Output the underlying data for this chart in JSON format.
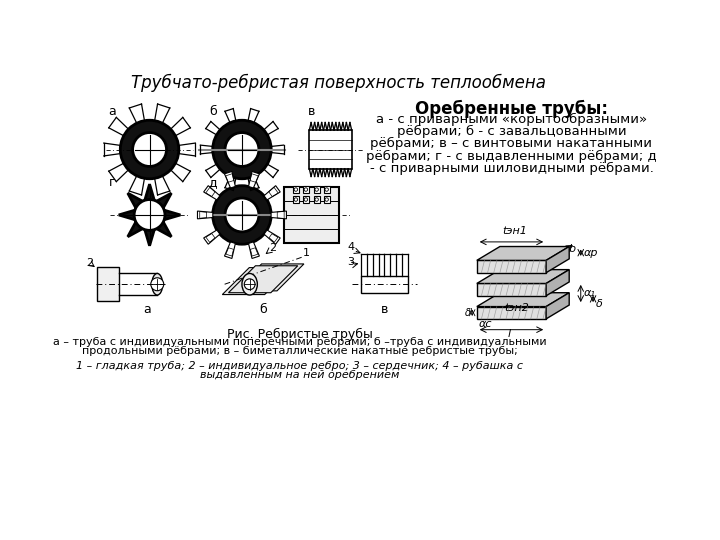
{
  "title": "Трубчато-ребристая поверхность теплообмена",
  "bg_color": "#ffffff",
  "text_color": "#000000",
  "right_box_title": "Оребренные трубы:",
  "right_box_body": "а - с приварными «корытообразными»\nрёбрами; б - с завальцованными\nрёбрами; в – с винтовыми накатанными\nрёбрами; г - с выдавленными рёбрами; д\n- с приварными шиловидными рёбрами.",
  "caption_title": "Рис. Ребристые трубы",
  "caption_line1": "а – труба с индивидуальными поперечными рёбрами; б –труба с индивидуальными",
  "caption_line2": "продольными рёбрами; в – биметаллические накатные ребристые трубы;",
  "caption_line3": "1 – гладкая труба; 2 – индивидуальное ребро; 3 – сердечник; 4 – рубашка с",
  "caption_line4": "выдавленным на ней оребрением"
}
